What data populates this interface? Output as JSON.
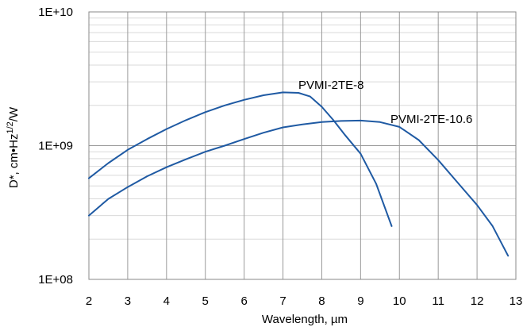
{
  "chart_data": {
    "type": "line",
    "title": "",
    "xlabel": "Wavelength, µm",
    "ylabel": "D*, cm•Hz1/2/W",
    "ylabel_parts": {
      "before": "D*, cm•Hz",
      "sup": "1/2",
      "after": "/W"
    },
    "y_scale": "log",
    "xlim": [
      2,
      13
    ],
    "ylim": [
      100000000,
      10000000000
    ],
    "x_ticks": [
      2,
      3,
      4,
      5,
      6,
      7,
      8,
      9,
      10,
      11,
      12,
      13
    ],
    "y_ticks": [
      {
        "value": 100000000,
        "label": "1E+08"
      },
      {
        "value": 1000000000,
        "label": "1E+09"
      },
      {
        "value": 10000000000,
        "label": "1E+10"
      }
    ],
    "grid": true,
    "line_color": "#1f5aa3",
    "series": [
      {
        "name": "PVMI-2TE-8",
        "x": [
          2,
          2.5,
          3,
          3.5,
          4,
          4.5,
          5,
          5.5,
          6,
          6.5,
          7,
          7.4,
          7.7,
          8,
          8.3,
          8.6,
          9,
          9.4,
          9.8
        ],
        "y": [
          570000000,
          740000000,
          930000000,
          1120000000,
          1330000000,
          1550000000,
          1780000000,
          2000000000,
          2200000000,
          2380000000,
          2500000000,
          2480000000,
          2330000000,
          1950000000,
          1550000000,
          1200000000,
          870000000,
          520000000,
          250000000
        ]
      },
      {
        "name": "PVMI-2TE-10.6",
        "x": [
          2,
          2.5,
          3,
          3.5,
          4,
          4.5,
          5,
          5.5,
          6,
          6.5,
          7,
          7.5,
          8,
          8.5,
          9,
          9.5,
          10,
          10.5,
          11,
          11.5,
          12,
          12.4,
          12.8
        ],
        "y": [
          300000000,
          400000000,
          490000000,
          590000000,
          690000000,
          790000000,
          900000000,
          1000000000,
          1120000000,
          1250000000,
          1370000000,
          1440000000,
          1500000000,
          1530000000,
          1540000000,
          1500000000,
          1380000000,
          1100000000,
          780000000,
          530000000,
          360000000,
          250000000,
          150000000
        ]
      }
    ]
  }
}
